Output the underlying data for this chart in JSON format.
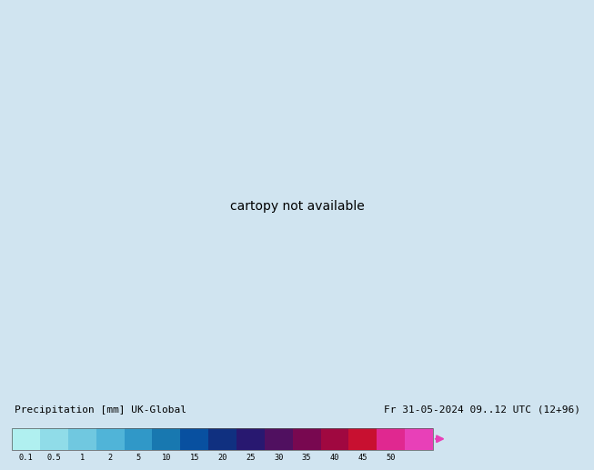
{
  "title_left": "Precipitation [mm] UK-Global",
  "title_right": "Fr 31-05-2024 09..12 UTC (12+96)",
  "colorbar_labels": [
    "0.1",
    "0.5",
    "1",
    "2",
    "5",
    "10",
    "15",
    "20",
    "25",
    "30",
    "35",
    "40",
    "45",
    "50"
  ],
  "colorbar_colors": [
    "#b0f0f0",
    "#90dce8",
    "#70c8e0",
    "#50b4d8",
    "#3098c8",
    "#1878b0",
    "#0850a0",
    "#103080",
    "#281870",
    "#501060",
    "#780850",
    "#a00840",
    "#c81030",
    "#e02890",
    "#e840b8"
  ],
  "ocean_color": "#d8eaf2",
  "land_color_light": "#e8eed8",
  "land_color_green": "#c8dca8",
  "precip_light_color": "#c0ecec",
  "precip_mid_color": "#80c8e0",
  "precip_dark_color": "#3080c0",
  "isobar_color": "#cc0000",
  "front_color": "#0000cc",
  "fig_bg": "#d0e4f0",
  "isobar_lw": 1.1,
  "fig_width": 6.34,
  "fig_height": 4.9
}
